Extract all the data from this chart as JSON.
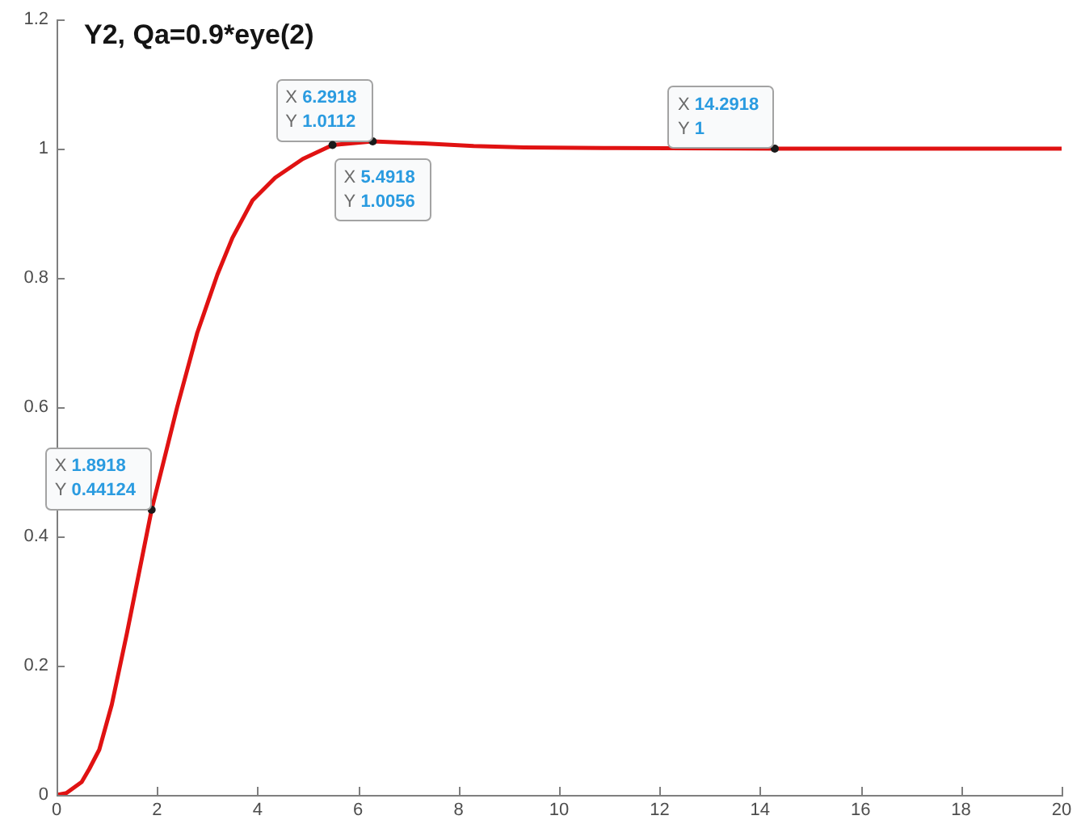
{
  "chart_data": {
    "type": "line",
    "title": "Y2, Qa=0.9*eye(2)",
    "x": [
      0,
      0.2,
      0.5,
      0.65,
      0.85,
      1.1,
      1.4,
      1.8918,
      2.4,
      2.8,
      3.2,
      3.5,
      3.9,
      4.35,
      4.9,
      5.4918,
      6.2918,
      7.3,
      8.3,
      9.3,
      10.9,
      14.2918,
      20
    ],
    "series": [
      {
        "color": "#e01212",
        "values": [
          0,
          0.003,
          0.02,
          0.04,
          0.07,
          0.14,
          0.25,
          0.44124,
          0.6,
          0.715,
          0.805,
          0.862,
          0.92,
          0.955,
          0.984,
          1.0056,
          1.0112,
          1.008,
          1.004,
          1.002,
          1.001,
          1,
          1
        ]
      }
    ],
    "xlim": [
      0,
      20
    ],
    "ylim": [
      0,
      1.2
    ],
    "xticks": [
      0,
      2,
      4,
      6,
      8,
      10,
      12,
      14,
      16,
      18,
      20
    ],
    "yticks": [
      0,
      0.2,
      0.4,
      0.6,
      0.8,
      1,
      1.2
    ],
    "grid": false,
    "legend": false,
    "marker": "none",
    "line_style": "solid",
    "annotations": [
      {
        "text": "X 1.8918\nY 0.44124",
        "x": 1.8918,
        "y": 0.44124
      },
      {
        "text": "X 6.2918\nY 1.0112",
        "x": 6.2918,
        "y": 1.0112
      },
      {
        "text": "X 5.4918\nY 1.0056",
        "x": 5.4918,
        "y": 1.0056
      },
      {
        "text": "X 14.2918\nY 1",
        "x": 14.2918,
        "y": 1
      }
    ]
  }
}
